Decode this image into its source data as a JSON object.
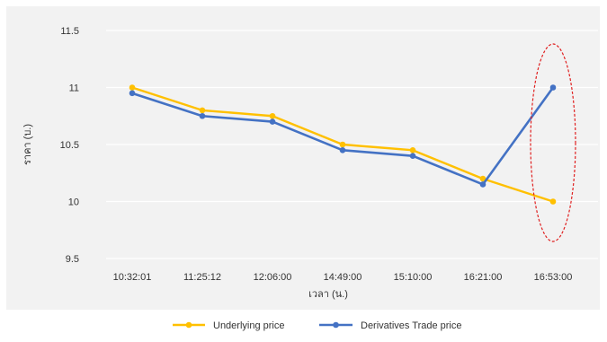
{
  "chart_data": {
    "type": "line",
    "title": "",
    "xlabel": "เวลา (น.)",
    "ylabel": "ราคา (บ.)",
    "categories": [
      "10:32:01",
      "11:25:12",
      "12:06:00",
      "14:49:00",
      "15:10:00",
      "16:21:00",
      "16:53:00"
    ],
    "ylim": [
      9.5,
      11.5
    ],
    "yticks": [
      "9.5",
      "10",
      "10.5",
      "11",
      "11.5"
    ],
    "grid": true,
    "legend_position": "bottom",
    "series": [
      {
        "name": "Underlying price",
        "color": "#FFC000",
        "values": [
          11.0,
          10.8,
          10.75,
          10.5,
          10.45,
          10.2,
          10.0
        ]
      },
      {
        "name": "Derivatives Trade price",
        "color": "#4472C4",
        "values": [
          10.95,
          10.75,
          10.7,
          10.45,
          10.4,
          10.15,
          11.0
        ]
      }
    ],
    "annotation": {
      "type": "ellipse",
      "target_category": "16:53:00",
      "style": "dashed",
      "color": "#E02020"
    },
    "colors": {
      "plot_background": "#F2F2F2",
      "gridline": "#FFFFFF",
      "axis_text": "#333333"
    }
  }
}
